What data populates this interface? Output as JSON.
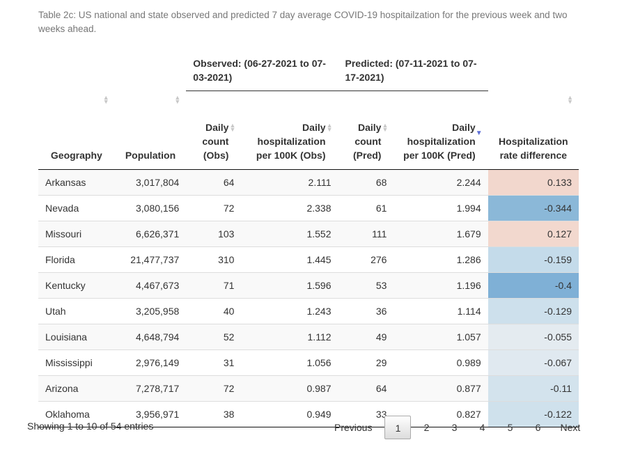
{
  "caption": "Table 2c: US national and state observed and predicted 7 day average COVID-19 hospitailzation for the previous week and two weeks ahead.",
  "group_headers": {
    "observed": "Observed: (06-27-2021 to 07-03-2021)",
    "predicted": "Predicted: (07-11-2021 to 07-17-2021)"
  },
  "columns": {
    "geography": "Geography",
    "population": "Population",
    "count_obs": "Daily count (Obs)",
    "rate_obs": "Daily hospitalization per 100K (Obs)",
    "count_pred": "Daily count (Pred)",
    "rate_pred": "Daily hospitalization per 100K (Pred)",
    "diff": "Hospitalization rate difference"
  },
  "sort": {
    "column": "rate_pred",
    "direction": "descending"
  },
  "rows": [
    {
      "geo": "Arkansas",
      "pop": "3,017,804",
      "cobs": "64",
      "robs": "2.111",
      "cpred": "68",
      "rpred": "2.244",
      "diff": "0.133",
      "color": "#f2d7cd"
    },
    {
      "geo": "Nevada",
      "pop": "3,080,156",
      "cobs": "72",
      "robs": "2.338",
      "cpred": "61",
      "rpred": "1.994",
      "diff": "-0.344",
      "color": "#8bb8d8"
    },
    {
      "geo": "Missouri",
      "pop": "6,626,371",
      "cobs": "103",
      "robs": "1.552",
      "cpred": "111",
      "rpred": "1.679",
      "diff": "0.127",
      "color": "#f2d8ce"
    },
    {
      "geo": "Florida",
      "pop": "21,477,737",
      "cobs": "310",
      "robs": "1.445",
      "cpred": "276",
      "rpred": "1.286",
      "diff": "-0.159",
      "color": "#c4dbea"
    },
    {
      "geo": "Kentucky",
      "pop": "4,467,673",
      "cobs": "71",
      "robs": "1.596",
      "cpred": "53",
      "rpred": "1.196",
      "diff": "-0.4",
      "color": "#7fb0d6"
    },
    {
      "geo": "Utah",
      "pop": "3,205,958",
      "cobs": "40",
      "robs": "1.243",
      "cpred": "36",
      "rpred": "1.114",
      "diff": "-0.129",
      "color": "#cde0ec"
    },
    {
      "geo": "Louisiana",
      "pop": "4,648,794",
      "cobs": "52",
      "robs": "1.112",
      "cpred": "49",
      "rpred": "1.057",
      "diff": "-0.055",
      "color": "#e4ebf0"
    },
    {
      "geo": "Mississippi",
      "pop": "2,976,149",
      "cobs": "31",
      "robs": "1.056",
      "cpred": "29",
      "rpred": "0.989",
      "diff": "-0.067",
      "color": "#e0e9f0"
    },
    {
      "geo": "Arizona",
      "pop": "7,278,717",
      "cobs": "72",
      "robs": "0.987",
      "cpred": "64",
      "rpred": "0.877",
      "diff": "-0.11",
      "color": "#d3e3ed"
    },
    {
      "geo": "Oklahoma",
      "pop": "3,956,971",
      "cobs": "38",
      "robs": "0.949",
      "cpred": "33",
      "rpred": "0.827",
      "diff": "-0.122",
      "color": "#cfe1ec"
    }
  ],
  "footer": {
    "info": "Showing 1 to 10 of 54 entries",
    "previous": "Previous",
    "pages": [
      "1",
      "2",
      "3",
      "4",
      "5",
      "6"
    ],
    "current_page": "1",
    "next": "Next"
  }
}
